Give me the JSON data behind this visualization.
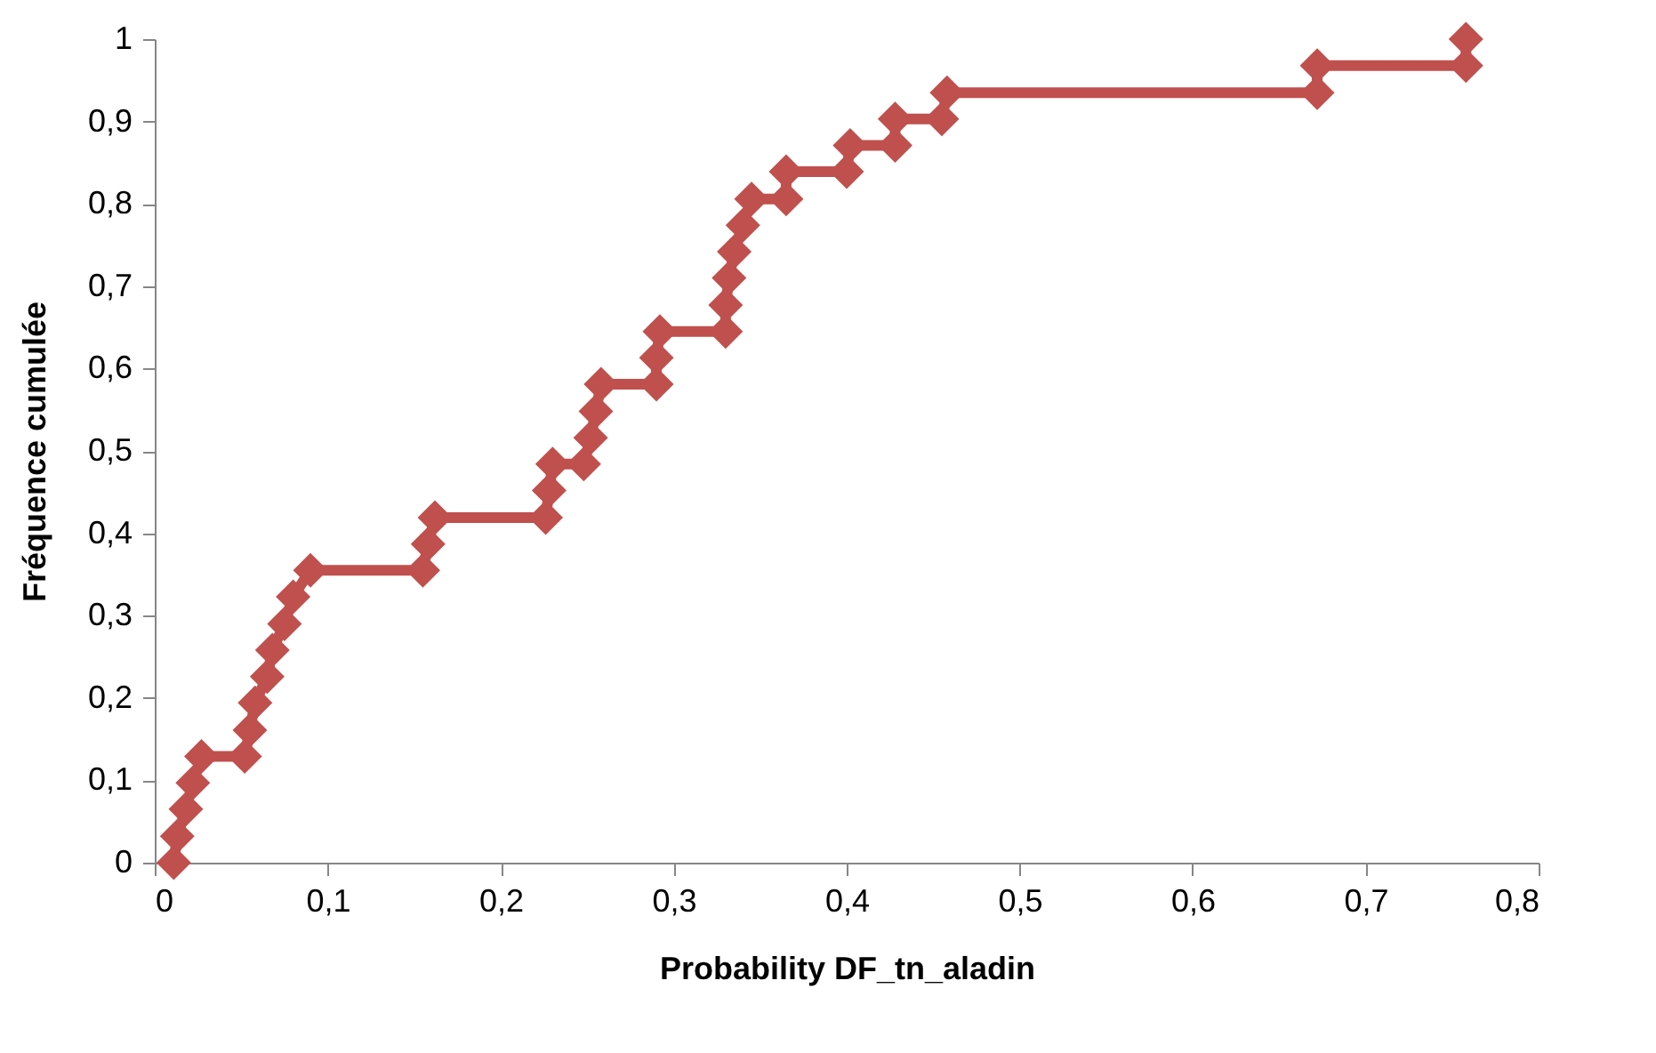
{
  "chart_data": {
    "type": "line",
    "xlabel": "Probability DF_tn_aladin",
    "ylabel": "Fréquence cumulée",
    "x": [
      0.011,
      0.013,
      0.018,
      0.022,
      0.027,
      0.052,
      0.055,
      0.058,
      0.065,
      0.068,
      0.075,
      0.08,
      0.09,
      0.155,
      0.158,
      0.162,
      0.226,
      0.228,
      0.23,
      0.248,
      0.252,
      0.255,
      0.258,
      0.29,
      0.29,
      0.292,
      0.33,
      0.33,
      0.332,
      0.335,
      0.34,
      0.345,
      0.365,
      0.365,
      0.4,
      0.402,
      0.428,
      0.428,
      0.455,
      0.458,
      0.672,
      0.672,
      0.758,
      0.758
    ],
    "series": [
      {
        "color": "#c0504d",
        "values": [
          0.0,
          0.032,
          0.065,
          0.097,
          0.129,
          0.129,
          0.161,
          0.194,
          0.226,
          0.258,
          0.29,
          0.323,
          0.355,
          0.355,
          0.387,
          0.419,
          0.419,
          0.452,
          0.484,
          0.484,
          0.516,
          0.548,
          0.581,
          0.581,
          0.613,
          0.645,
          0.645,
          0.677,
          0.71,
          0.742,
          0.774,
          0.806,
          0.806,
          0.839,
          0.839,
          0.871,
          0.871,
          0.903,
          0.903,
          0.935,
          0.935,
          0.968,
          0.968,
          1.0
        ]
      }
    ],
    "xlim": [
      0,
      0.8
    ],
    "ylim": [
      0,
      1
    ],
    "xticks": [
      0,
      {
        "value": 0.1,
        "label": "0,1"
      },
      {
        "value": 0.2,
        "label": "0,2"
      },
      {
        "value": 0.3,
        "label": "0,3"
      },
      {
        "value": 0.4,
        "label": "0,4"
      },
      {
        "value": 0.5,
        "label": "0,5"
      },
      {
        "value": 0.6,
        "label": "0,6"
      },
      {
        "value": 0.7,
        "label": "0,7"
      },
      {
        "value": 0.8,
        "label": "0,8"
      }
    ],
    "yticks": [
      0,
      {
        "value": 0.1,
        "label": "0,1"
      },
      {
        "value": 0.2,
        "label": "0,2"
      },
      {
        "value": 0.3,
        "label": "0,3"
      },
      {
        "value": 0.4,
        "label": "0,4"
      },
      {
        "value": 0.5,
        "label": "0,5"
      },
      {
        "value": 0.6,
        "label": "0,6"
      },
      {
        "value": 0.7,
        "label": "0,7"
      },
      {
        "value": 0.8,
        "label": "0,8"
      },
      {
        "value": 0.9,
        "label": "0,9"
      },
      1
    ],
    "marker": "diamond",
    "line_style": "solid",
    "grid": false
  }
}
